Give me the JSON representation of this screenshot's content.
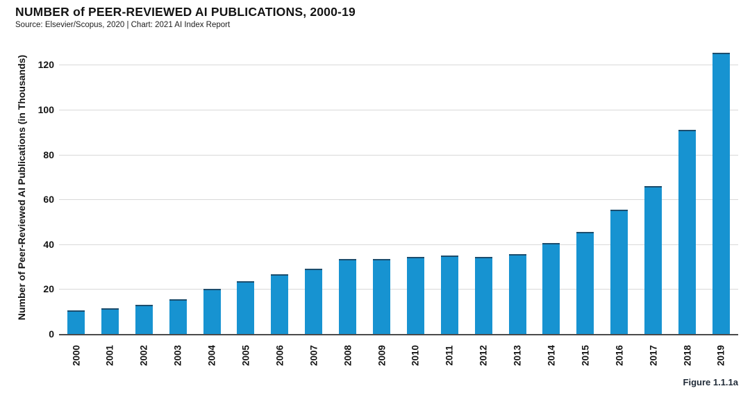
{
  "header": {
    "title": "NUMBER of PEER-REVIEWED AI PUBLICATIONS, 2000-19",
    "subtitle": "Source: Elsevier/Scopus, 2020 | Chart: 2021 AI Index Report"
  },
  "figure_label": "Figure 1.1.1a",
  "colors": {
    "bar": "#1793d1",
    "bar_cap": "rgba(31,53,75,0.75)",
    "gridline": "#d8d8d8",
    "axis_line": "#4a4a4a",
    "text": "#141414"
  },
  "chart_data": {
    "type": "bar",
    "title": "NUMBER of PEER-REVIEWED AI PUBLICATIONS, 2000-19",
    "categories": [
      "2000",
      "2001",
      "2002",
      "2003",
      "2004",
      "2005",
      "2006",
      "2007",
      "2008",
      "2009",
      "2010",
      "2011",
      "2012",
      "2013",
      "2014",
      "2015",
      "2016",
      "2017",
      "2018",
      "2019"
    ],
    "values": [
      10.5,
      11.5,
      13,
      15.5,
      20,
      23.5,
      26.5,
      29,
      33.5,
      33.5,
      34.5,
      35,
      34.5,
      35.5,
      40.5,
      45.5,
      55.5,
      66,
      91,
      125.5
    ],
    "xlabel": "",
    "ylabel": "Number of Peer-Reviewed AI Publications (in Thousands)",
    "yticks": [
      0,
      20,
      40,
      60,
      80,
      100,
      120
    ],
    "ylim": [
      0,
      130
    ],
    "grid": true,
    "legend_position": "none"
  }
}
